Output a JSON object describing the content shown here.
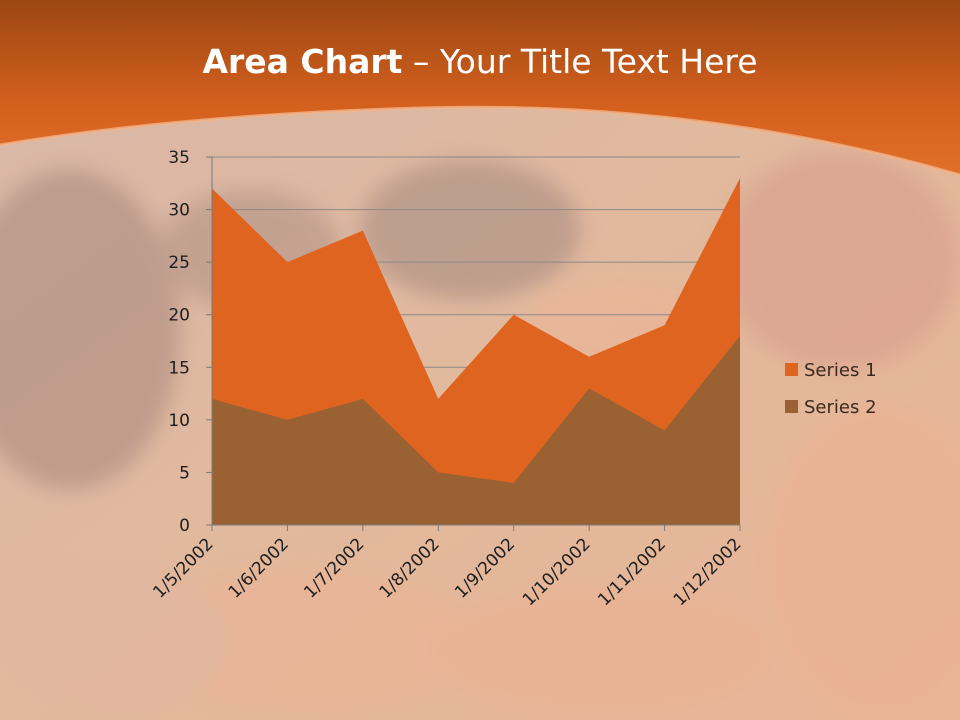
{
  "slide": {
    "title_bold": "Area Chart",
    "title_rest": " – Your Title Text Here"
  },
  "colors": {
    "header_orange": "#d9621f",
    "series1": "#de6420",
    "series2": "#9a6232"
  },
  "chart_data": {
    "type": "area",
    "title": "",
    "xlabel": "",
    "ylabel": "",
    "categories": [
      "1/5/2002",
      "1/6/2002",
      "1/7/2002",
      "1/8/2002",
      "1/9/2002",
      "1/10/2002",
      "1/11/2002",
      "1/12/2002"
    ],
    "series": [
      {
        "name": "Series 1",
        "values": [
          32,
          25,
          28,
          12,
          20,
          16,
          19,
          33
        ]
      },
      {
        "name": "Series 2",
        "values": [
          12,
          10,
          12,
          5,
          4,
          13,
          9,
          18
        ]
      }
    ],
    "ylim": [
      0,
      35
    ],
    "yticks": [
      0,
      5,
      10,
      15,
      20,
      25,
      30,
      35
    ],
    "grid": true,
    "legend": "right"
  }
}
